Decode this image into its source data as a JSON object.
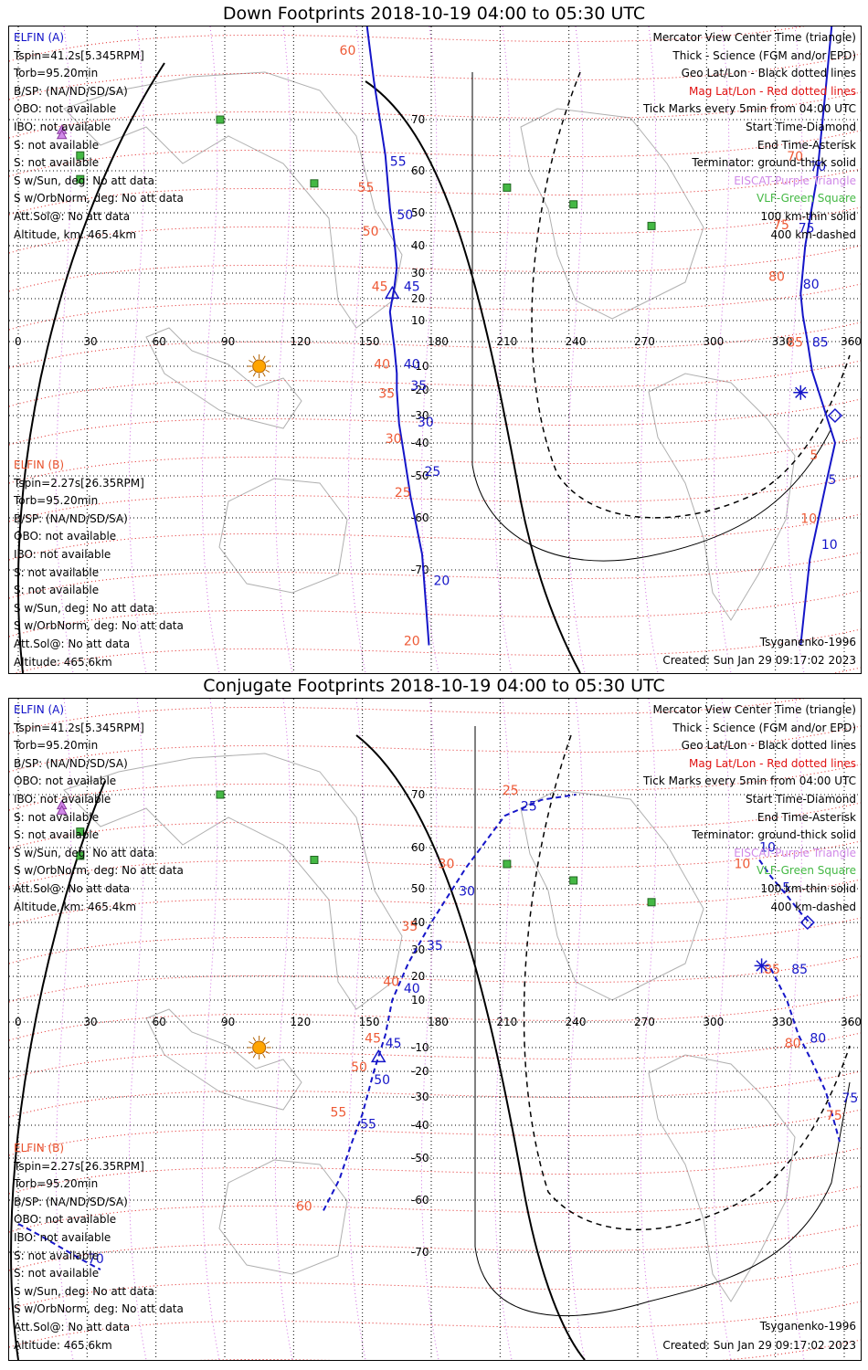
{
  "panels": [
    {
      "title": "Down Footprints 2018-10-19 04:00 to 05:30 UTC",
      "elfin_a": {
        "header": "ELFIN (A)",
        "lines": [
          "Tspin=41.2s[5.345RPM]",
          "Torb=95.20min",
          "B/SP: (NA/ND/SD/SA)",
          "OBO: not available",
          "IBO: not available",
          "S: not available",
          "S: not available",
          "S w/Sun, deg: No att data",
          "S w/OrbNorm, deg: No att data",
          "Att.Sol@: No att data",
          "Altitude, km: 465.4km"
        ]
      },
      "elfin_b": {
        "header": "ELFIN (B)",
        "lines": [
          "Tspin=2.27s[26.35RPM]",
          "Torb=95.20min",
          "B/SP: (NA/ND/SD/SA)",
          "OBO: not available",
          "IBO: not available",
          "S: not available",
          "S: not available",
          "S w/Sun, deg: No att data",
          "S w/OrbNorm, deg: No att data",
          "Att.Sol@: No att data",
          "Altitude: 465.6km"
        ]
      },
      "legend": [
        {
          "text": "Mercator View Center Time (triangle)",
          "color": "#000000"
        },
        {
          "text": "Thick - Science (FGM and/or EPD)",
          "color": "#000000"
        },
        {
          "text": "Geo Lat/Lon - Black dotted lines",
          "color": "#000000"
        },
        {
          "text": "Mag Lat/Lon - Red dotted lines",
          "color": "#e01010"
        },
        {
          "text": "Tick Marks every 5min from 04:00 UTC",
          "color": "#000000"
        },
        {
          "text": "Start Time-Diamond",
          "color": "#000000"
        },
        {
          "text": "End Time-Asterisk",
          "color": "#000000"
        },
        {
          "text": "Terminator: ground-thick solid",
          "color": "#000000"
        },
        {
          "text": "EISCAT-Purple Triangle",
          "color": "#d089e8"
        },
        {
          "text": "VLF-Green Square",
          "color": "#44b844"
        },
        {
          "text": "100 km-thin solid",
          "color": "#000000"
        },
        {
          "text": "400 km-dashed",
          "color": "#000000"
        }
      ],
      "model": "Tsyganenko-1996",
      "created": "Created: Sun Jan 29 09:17:02 2023",
      "lon_labels": [
        "0",
        "30",
        "60",
        "90",
        "120",
        "150",
        "180",
        "210",
        "240",
        "270",
        "300",
        "330",
        "360"
      ],
      "lat_labels": [
        "70",
        "60",
        "50",
        "40",
        "30",
        "20",
        "10",
        "-10",
        "-20",
        "-30",
        "-40",
        "-50",
        "-60",
        "-70"
      ],
      "track_a": {
        "points": [
          [
            150,
            90
          ],
          [
            155,
            76
          ],
          [
            160,
            63
          ],
          [
            162,
            51
          ],
          [
            164,
            41
          ],
          [
            165,
            32
          ],
          [
            164,
            25
          ],
          [
            162,
            14
          ],
          [
            163,
            5
          ],
          [
            164,
            -3
          ],
          [
            165,
            -13
          ],
          [
            165,
            -20
          ],
          [
            166,
            -33
          ],
          [
            168,
            -43
          ],
          [
            171,
            -55
          ],
          [
            176,
            -67
          ],
          [
            179,
            -80
          ]
        ],
        "ticks": [
          {
            "text": "55",
            "lon": 162,
            "lat": 61
          },
          {
            "text": "50",
            "lon": 165,
            "lat": 48
          },
          {
            "text": "45",
            "lon": 168,
            "lat": 23
          },
          {
            "text": "40",
            "lon": 168,
            "lat": -11
          },
          {
            "text": "35",
            "lon": 171,
            "lat": -20
          },
          {
            "text": "30",
            "lon": 174,
            "lat": -34
          },
          {
            "text": "25",
            "lon": 177,
            "lat": -50
          },
          {
            "text": "20",
            "lon": 181,
            "lat": -72
          }
        ],
        "triangle": [
          163,
          22
        ]
      },
      "track_b": {
        "points": [
          [
            356,
            90
          ],
          [
            352,
            75
          ],
          [
            348,
            58
          ],
          [
            343,
            40
          ],
          [
            341,
            22
          ],
          [
            342,
            12
          ],
          [
            344,
            0
          ],
          [
            346,
            -12
          ],
          [
            356,
            -40
          ],
          [
            352,
            -52
          ],
          [
            345,
            -68
          ],
          [
            341,
            -80
          ]
        ],
        "ticks": [
          {
            "text": "70",
            "lon": 345,
            "lat": 60
          },
          {
            "text": "75",
            "lon": 340,
            "lat": 44
          },
          {
            "text": "80",
            "lon": 342,
            "lat": 24
          },
          {
            "text": "85",
            "lon": 346,
            "lat": -2
          },
          {
            "text": "5",
            "lon": 353,
            "lat": -52
          },
          {
            "text": "10",
            "lon": 350,
            "lat": -66
          }
        ],
        "ticks_orange": [
          {
            "text": "70",
            "lon": 335,
            "lat": 62
          },
          {
            "text": "75",
            "lon": 329,
            "lat": 45
          },
          {
            "text": "80",
            "lon": 327,
            "lat": 27
          },
          {
            "text": "85",
            "lon": 335,
            "lat": -2
          },
          {
            "text": "5",
            "lon": 345,
            "lat": -45
          },
          {
            "text": "10",
            "lon": 341,
            "lat": -61
          }
        ],
        "diamond": [
          356,
          -30
        ],
        "asterisk": [
          341,
          -21
        ]
      },
      "track_a_orange_ticks": [
        {
          "text": "60",
          "lon": 140,
          "lat": 80
        },
        {
          "text": "55",
          "lon": 148,
          "lat": 55
        },
        {
          "text": "50",
          "lon": 150,
          "lat": 43
        },
        {
          "text": "45",
          "lon": 154,
          "lat": 23
        },
        {
          "text": "40",
          "lon": 155,
          "lat": -11
        },
        {
          "text": "35",
          "lon": 157,
          "lat": -23
        },
        {
          "text": "30",
          "lon": 160,
          "lat": -40
        },
        {
          "text": "25",
          "lon": 164,
          "lat": -55
        },
        {
          "text": "20",
          "lon": 168,
          "lat": -80
        }
      ]
    },
    {
      "title": "Conjugate Footprints 2018-10-19 04:00 to 05:30 UTC",
      "elfin_a": {
        "header": "ELFIN (A)",
        "lines": [
          "Tspin=41.2s[5.345RPM]",
          "Torb=95.20min",
          "B/SP: (NA/ND/SD/SA)",
          "OBO: not available",
          "IBO: not available",
          "S: not available",
          "S: not available",
          "S w/Sun, deg: No att data",
          "S w/OrbNorm, deg: No att data",
          "Att.Sol@: No att data",
          "Altitude, km: 465.4km"
        ]
      },
      "elfin_b": {
        "header": "ELFIN (B)",
        "lines": [
          "Tspin=2.27s[26.35RPM]",
          "Torb=95.20min",
          "B/SP: (NA/ND/SD/SA)",
          "OBO: not available",
          "IBO: not available",
          "S: not available",
          "S: not available",
          "S w/Sun, deg: No att data",
          "S w/OrbNorm, deg: No att data",
          "Att.Sol@: No att data",
          "Altitude: 465.6km"
        ]
      },
      "legend": [
        {
          "text": "Mercator View Center Time (triangle)",
          "color": "#000000"
        },
        {
          "text": "Thick - Science (FGM and/or EPD)",
          "color": "#000000"
        },
        {
          "text": "Geo Lat/Lon - Black dotted lines",
          "color": "#000000"
        },
        {
          "text": "Mag Lat/Lon - Red dotted lines",
          "color": "#e01010"
        },
        {
          "text": "Tick Marks every 5min from 04:00 UTC",
          "color": "#000000"
        },
        {
          "text": "Start Time-Diamond",
          "color": "#000000"
        },
        {
          "text": "End Time-Asterisk",
          "color": "#000000"
        },
        {
          "text": "Terminator: ground-thick solid",
          "color": "#000000"
        },
        {
          "text": "EISCAT-Purple Triangle",
          "color": "#d089e8"
        },
        {
          "text": "VLF-Green Square",
          "color": "#44b844"
        },
        {
          "text": "100 km-thin solid",
          "color": "#000000"
        },
        {
          "text": "400 km-dashed",
          "color": "#000000"
        }
      ],
      "model": "Tsyganenko-1996",
      "created": "Created: Sun Jan 29 09:17:02 2023",
      "lon_labels": [
        "0",
        "30",
        "60",
        "90",
        "120",
        "150",
        "180",
        "210",
        "240",
        "270",
        "300",
        "330",
        "360"
      ],
      "lat_labels": [
        "70",
        "60",
        "50",
        "40",
        "30",
        "20",
        "10",
        "-10",
        "-20",
        "-30",
        "-40",
        "-50",
        "-60",
        "-70"
      ],
      "track_a": {
        "points": [
          [
            133,
            -62
          ],
          [
            140,
            -55
          ],
          [
            145,
            -46
          ],
          [
            150,
            -36
          ],
          [
            155,
            -20
          ],
          [
            160,
            -5
          ],
          [
            163,
            10
          ],
          [
            170,
            25
          ],
          [
            180,
            40
          ],
          [
            195,
            55
          ],
          [
            212,
            66
          ],
          [
            228,
            69
          ],
          [
            243,
            70
          ]
        ],
        "ticks": [
          {
            "text": "55",
            "lon": 149,
            "lat": -41
          },
          {
            "text": "50",
            "lon": 155,
            "lat": -25
          },
          {
            "text": "45",
            "lon": 160,
            "lat": -10
          },
          {
            "text": "40",
            "lon": 168,
            "lat": 13
          },
          {
            "text": "35",
            "lon": 178,
            "lat": 30
          },
          {
            "text": "30",
            "lon": 192,
            "lat": 48
          },
          {
            "text": "25",
            "lon": 219,
            "lat": 67
          }
        ],
        "triangle": [
          157,
          -14
        ]
      },
      "track_b": {
        "points": [
          [
            323,
            57
          ],
          [
            328,
            53
          ],
          [
            335,
            48
          ],
          [
            342,
            42
          ],
          [
            346,
            39
          ]
        ],
        "ticks": [
          {
            "text": "10",
            "lon": 323,
            "lat": 59
          },
          {
            "text": "5",
            "lon": 333,
            "lat": 49
          },
          {
            "text": "85",
            "lon": 337,
            "lat": 21
          }
        ],
        "ticks_orange": [
          {
            "text": "10",
            "lon": 312,
            "lat": 55
          },
          {
            "text": "85",
            "lon": 325,
            "lat": 21
          }
        ],
        "diamond": [
          344,
          40
        ],
        "asterisk": [
          324,
          24
        ]
      },
      "track_b2": {
        "points": [
          [
            328,
            23
          ],
          [
            335,
            10
          ],
          [
            340,
            -5
          ],
          [
            346,
            -16
          ],
          [
            352,
            -28
          ],
          [
            358,
            -45
          ]
        ],
        "ticks": [
          {
            "text": "80",
            "lon": 345,
            "lat": -8
          },
          {
            "text": "75",
            "lon": 359,
            "lat": -32
          }
        ],
        "ticks_orange": [
          {
            "text": "80",
            "lon": 334,
            "lat": -10
          },
          {
            "text": "75",
            "lon": 352,
            "lat": -38
          }
        ]
      },
      "track_a_orange_ticks": [
        {
          "text": "60",
          "lon": 121,
          "lat": -62
        },
        {
          "text": "55",
          "lon": 136,
          "lat": -37
        },
        {
          "text": "50",
          "lon": 145,
          "lat": -20
        },
        {
          "text": "45",
          "lon": 151,
          "lat": -8
        },
        {
          "text": "40",
          "lon": 159,
          "lat": 16
        },
        {
          "text": "35",
          "lon": 167,
          "lat": 37
        },
        {
          "text": "30",
          "lon": 183,
          "lat": 55
        },
        {
          "text": "25",
          "lon": 211,
          "lat": 70
        }
      ],
      "track_b_lower_label": "70"
    }
  ],
  "stations": {
    "vlf": [
      [
        88,
        70
      ],
      [
        27,
        63
      ],
      [
        27,
        58
      ],
      [
        129,
        57
      ],
      [
        213,
        56
      ],
      [
        242,
        52
      ],
      [
        276,
        46
      ]
    ],
    "eiscat": [
      [
        19,
        68
      ],
      [
        19,
        67
      ]
    ]
  },
  "sun": [
    105,
    -10
  ],
  "colors": {
    "track": "#1515c8",
    "tick_orange": "#ee5a36",
    "grid_red": "#e02020",
    "grid_violet": "#d06de0",
    "terminator": "#000000",
    "sun": "#ffa500",
    "coast": "#b0b0b0"
  }
}
